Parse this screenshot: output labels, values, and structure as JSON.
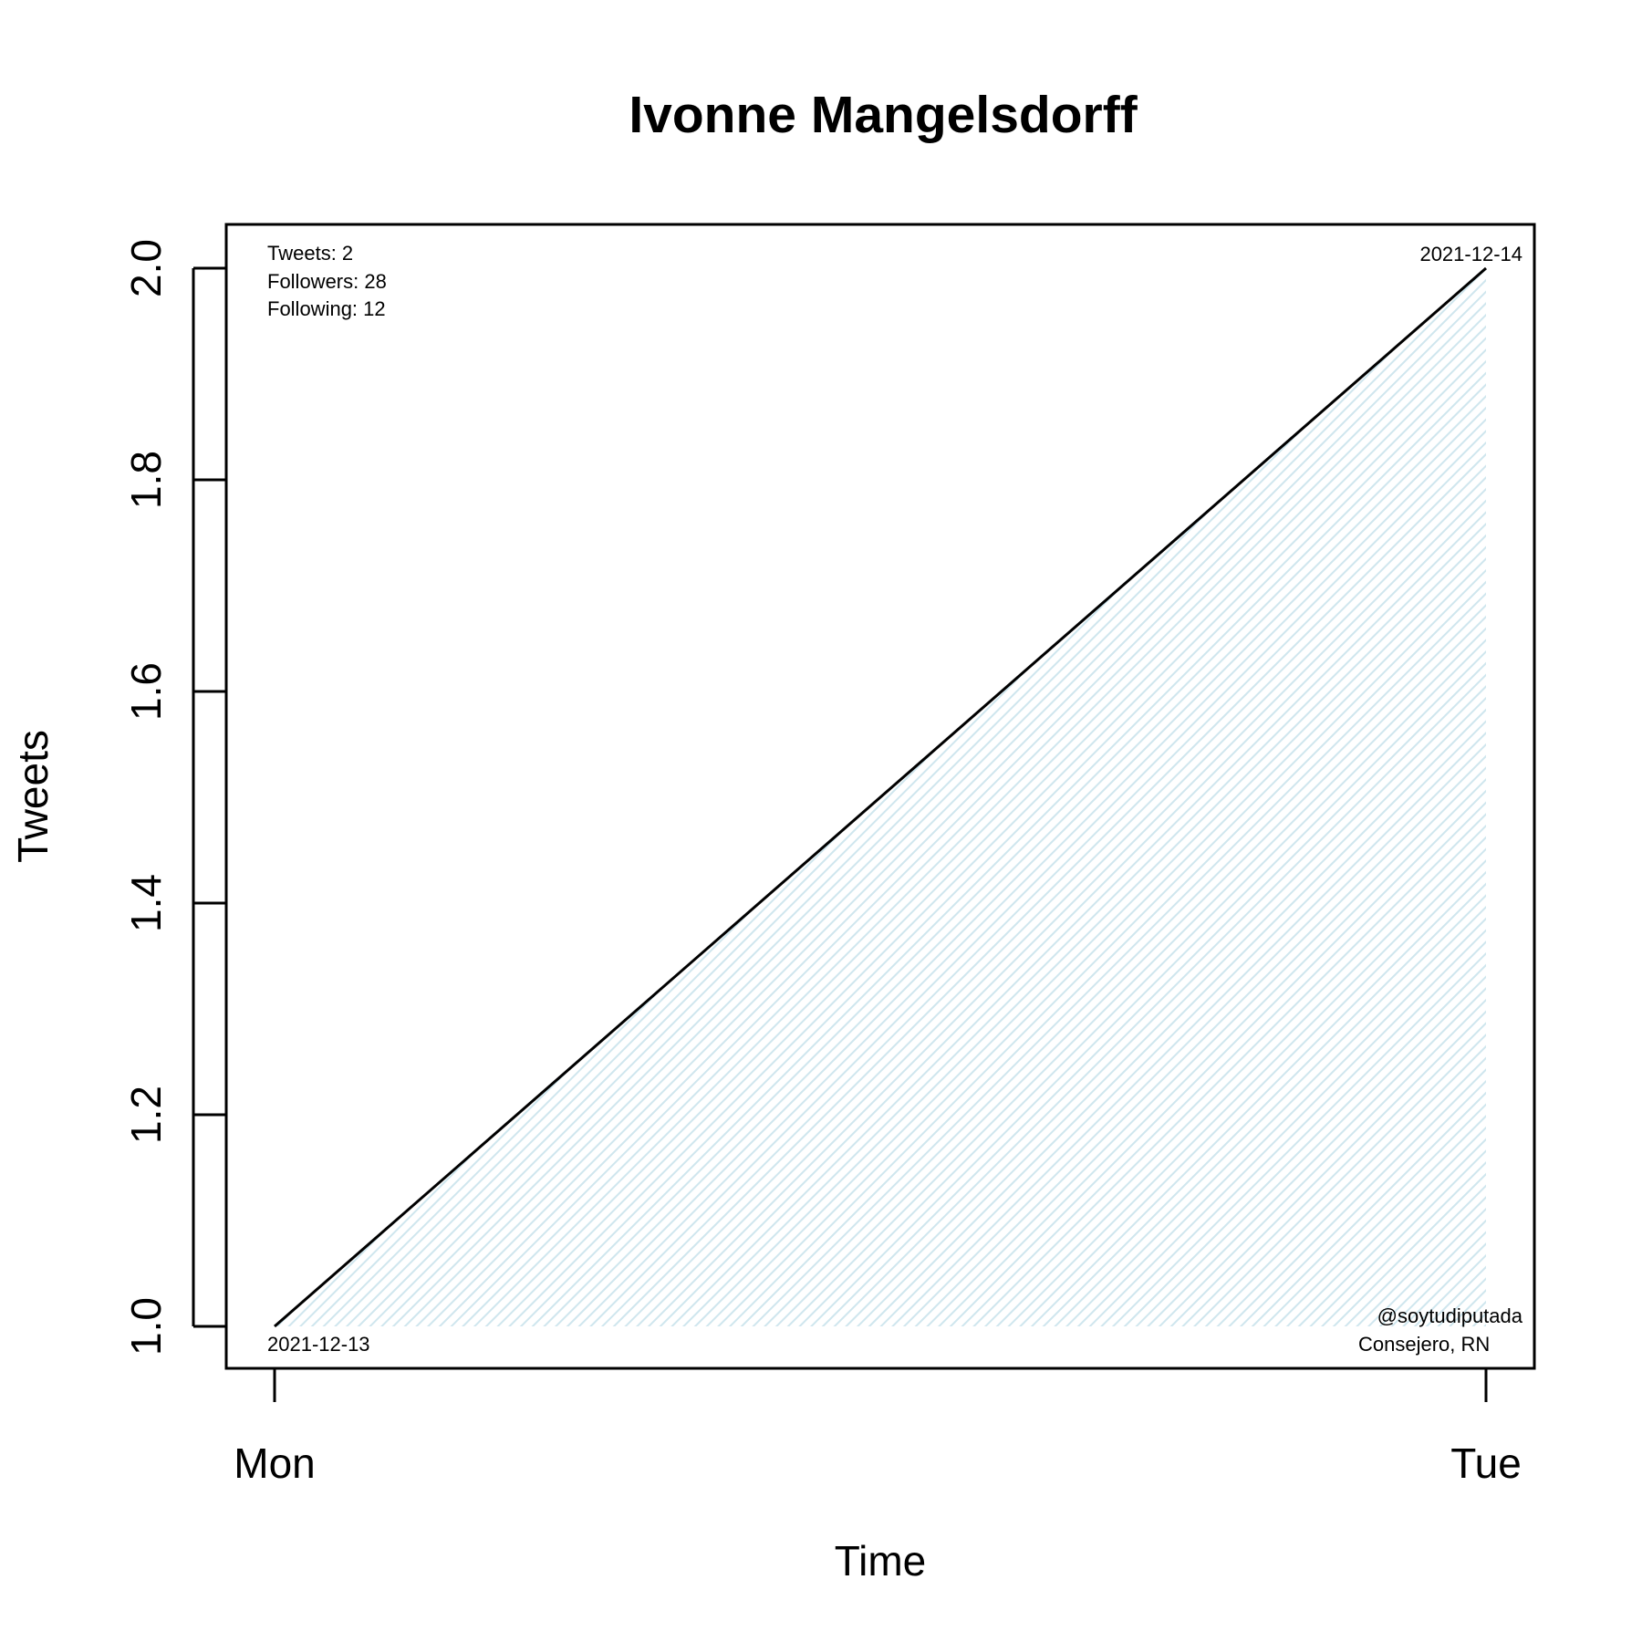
{
  "chart_data": {
    "type": "area",
    "title": "Ivonne Mangelsdorff",
    "xlabel": "Time",
    "ylabel": "Tweets",
    "x_tick_labels": [
      "Mon",
      "Tue"
    ],
    "y_ticks": [
      "1.0",
      "1.2",
      "1.4",
      "1.6",
      "1.8",
      "2.0"
    ],
    "ylim": [
      1.0,
      2.0
    ],
    "points": [
      {
        "date": "2021-12-13",
        "value": 1
      },
      {
        "date": "2021-12-14",
        "value": 2
      }
    ],
    "start_label": "2021-12-13",
    "end_label": "2021-12-14",
    "stats": {
      "tweets": "Tweets: 2",
      "followers": "Followers: 28",
      "following": "Following: 12"
    },
    "account": {
      "handle": "@soytudiputada",
      "role": "Consejero, RN"
    },
    "fill_color": "#cfe6ee",
    "line_color": "#000000",
    "grid": false,
    "legend": "none"
  }
}
